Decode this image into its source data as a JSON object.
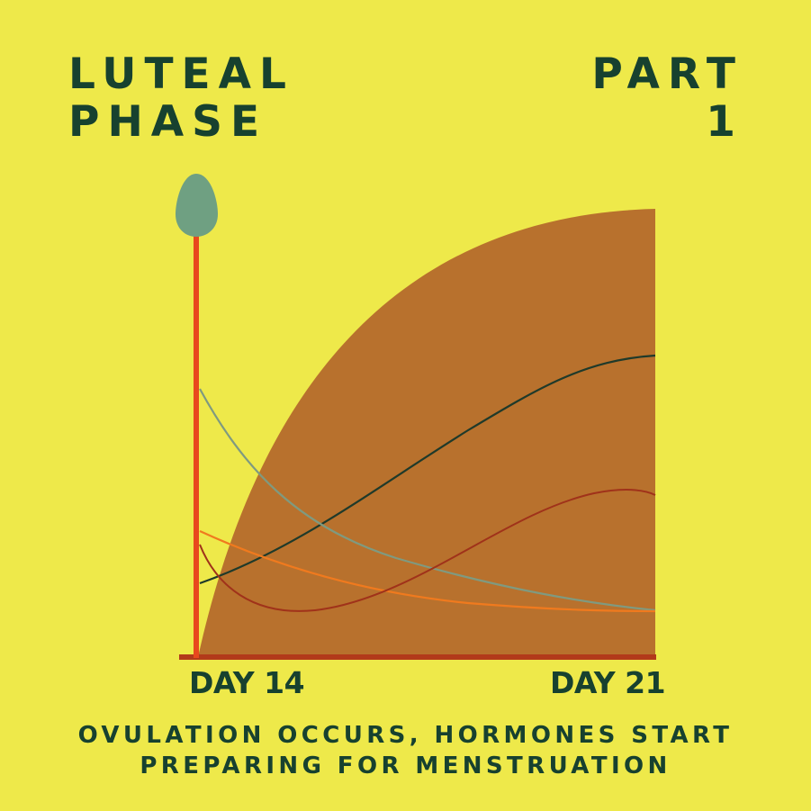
{
  "header": {
    "title_line1": "LUTEAL",
    "title_line2": "PHASE",
    "part_line1": "PART",
    "part_line2": "1"
  },
  "axis": {
    "start_label": "DAY 14",
    "end_label": "DAY 21"
  },
  "caption": {
    "line1": "OVULATION OCCURS, HORMONES START",
    "line2": "PREPARING FOR MENSTRUATION"
  },
  "colors": {
    "background": "#eee94a",
    "text": "#17412f",
    "uterine_lining": "#b8712d",
    "ovulation_marker": "#e8491d",
    "egg": "#6fa082",
    "baseline": "#b23a1a",
    "curve_dark": "#1f3a2a",
    "curve_sage": "#7f9a80",
    "curve_orange": "#f07a1e",
    "curve_red": "#a0321a"
  },
  "icons": {
    "egg": "egg-icon"
  }
}
